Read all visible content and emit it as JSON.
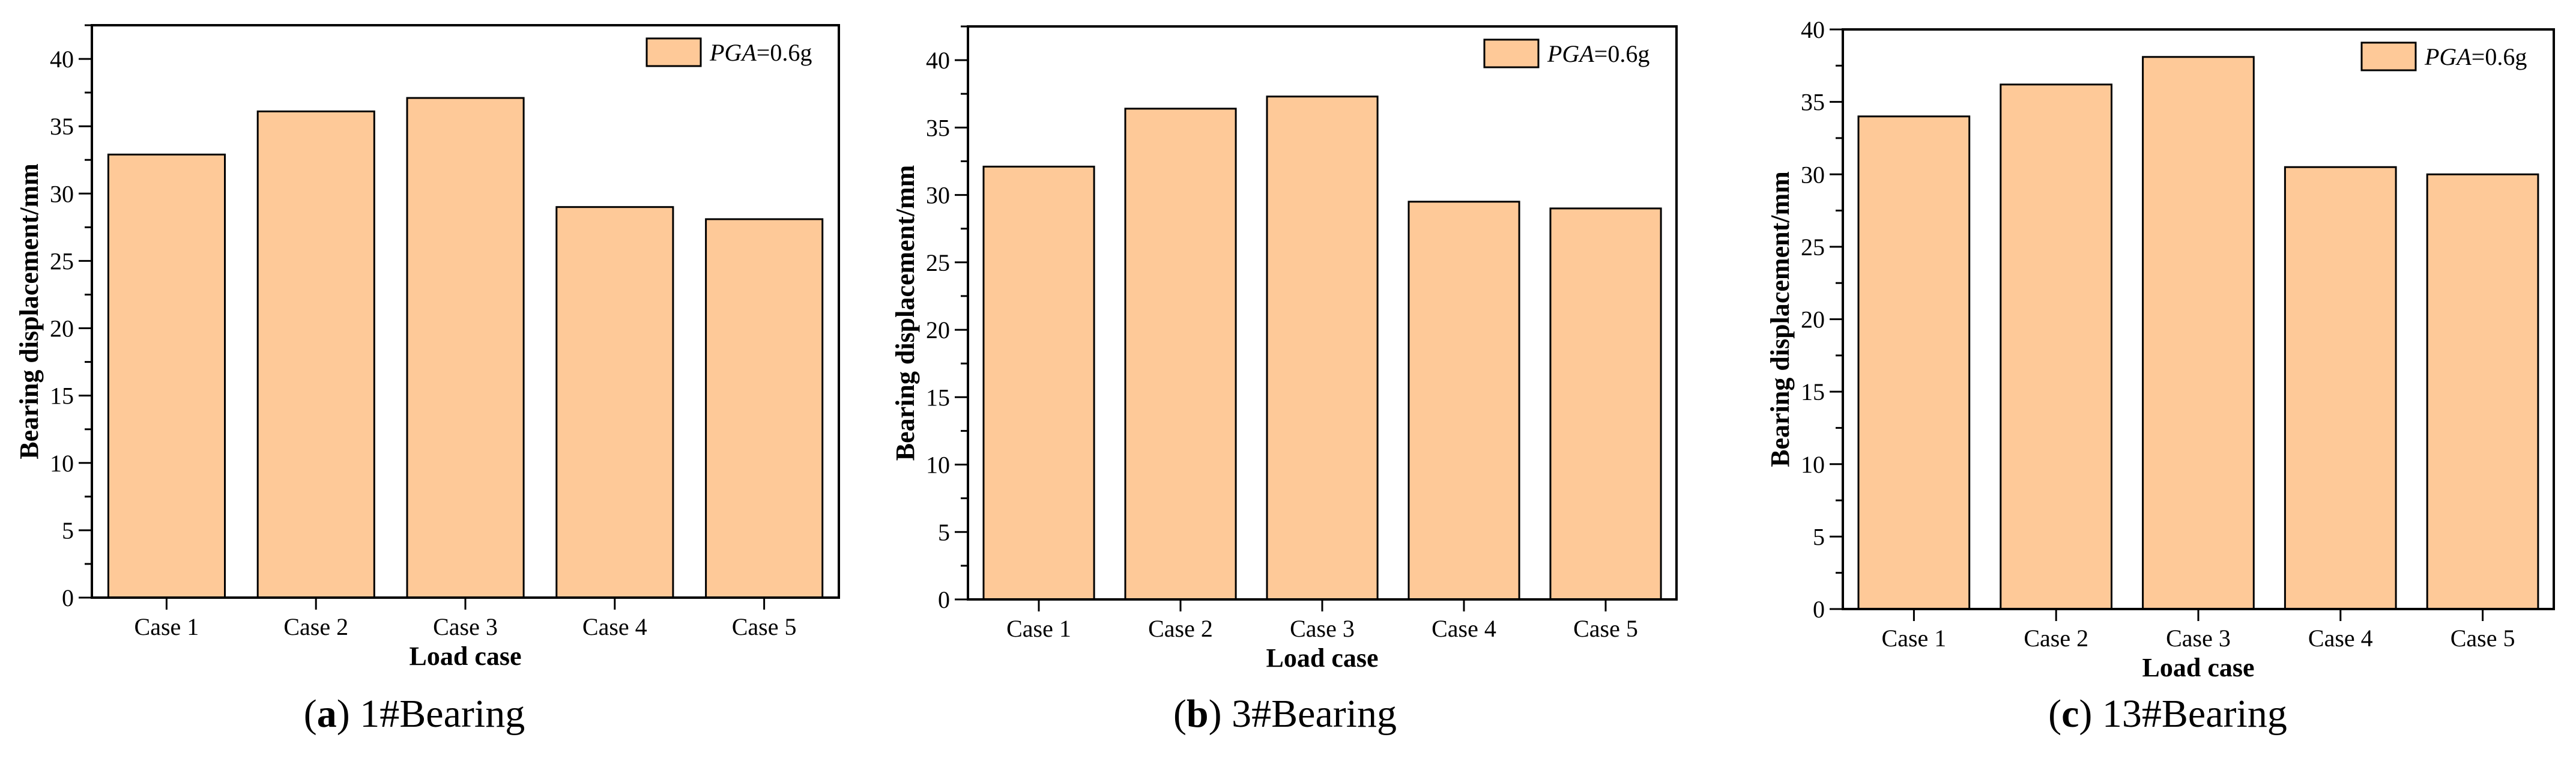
{
  "colors": {
    "bar_fill": "#fec998",
    "bar_stroke": "#000000",
    "axis": "#000000",
    "background": "#ffffff"
  },
  "chart_data": [
    {
      "type": "bar",
      "panel": "a",
      "caption_label": "a",
      "caption_text": "1#Bearing",
      "categories": [
        "Case 1",
        "Case 2",
        "Case 3",
        "Case 4",
        "Case 5"
      ],
      "series": [
        {
          "name": "PGA=0.6g",
          "values": [
            32.9,
            36.1,
            37.1,
            29.0,
            28.1
          ]
        }
      ],
      "legend": {
        "label_italic": "PGA",
        "label_rest": "=0.6g",
        "placement": "top-right"
      },
      "xlabel": "Load case",
      "ylabel": "Bearing displacement/mm",
      "ylim": [
        0,
        42.5
      ],
      "yticks": [
        0,
        5,
        10,
        15,
        20,
        25,
        30,
        35,
        40
      ],
      "grid": false
    },
    {
      "type": "bar",
      "panel": "b",
      "caption_label": "b",
      "caption_text": "3#Bearing",
      "categories": [
        "Case 1",
        "Case 2",
        "Case 3",
        "Case 4",
        "Case 5"
      ],
      "series": [
        {
          "name": "PGA=0.6g",
          "values": [
            32.1,
            36.4,
            37.3,
            29.5,
            29.0
          ]
        }
      ],
      "legend": {
        "label_italic": "PGA",
        "label_rest": "=0.6g",
        "placement": "top-right"
      },
      "xlabel": "Load case",
      "ylabel": "Bearing displacement/mm",
      "ylim": [
        0,
        42.5
      ],
      "yticks": [
        0,
        5,
        10,
        15,
        20,
        25,
        30,
        35,
        40
      ],
      "grid": false
    },
    {
      "type": "bar",
      "panel": "c",
      "caption_label": "c",
      "caption_text": "13#Bearing",
      "categories": [
        "Case 1",
        "Case 2",
        "Case 3",
        "Case 4",
        "Case 5"
      ],
      "series": [
        {
          "name": "PGA=0.6g",
          "values": [
            34.0,
            36.2,
            38.1,
            30.5,
            30.0
          ]
        }
      ],
      "legend": {
        "label_italic": "PGA",
        "label_rest": "=0.6g",
        "placement": "top-right"
      },
      "xlabel": "Load case",
      "ylabel": "Bearing displacement/mm",
      "ylim": [
        0,
        40
      ],
      "yticks": [
        0,
        5,
        10,
        15,
        20,
        25,
        30,
        35,
        40
      ],
      "grid": false
    }
  ]
}
